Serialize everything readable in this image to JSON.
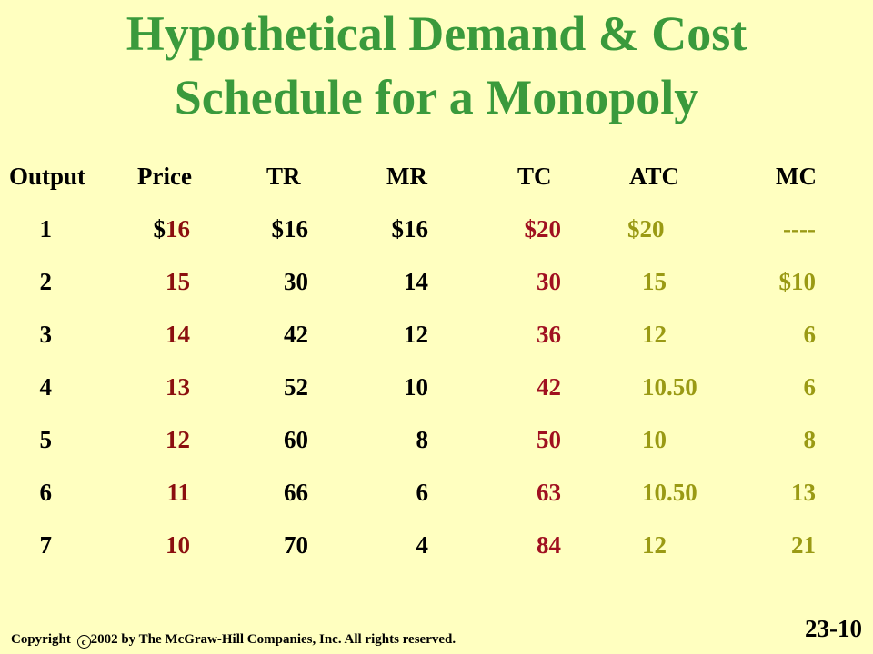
{
  "title": {
    "line1": "Hypothetical Demand & Cost",
    "line2": "Schedule for a Monopoly"
  },
  "table": {
    "headers": [
      "Output",
      "Price",
      "TR",
      "MR",
      "TC",
      "ATC",
      "MC"
    ],
    "rows": [
      {
        "output": "1",
        "price_sign": "$",
        "price": "16",
        "tr": "$16",
        "mr": "$16",
        "tc": "$20",
        "atc": "$20",
        "mc": "----"
      },
      {
        "output": "2",
        "price_sign": "",
        "price": "15",
        "tr": "30",
        "mr": "14",
        "tc": "30",
        "atc": "15",
        "mc": "$10"
      },
      {
        "output": "3",
        "price_sign": "",
        "price": "14",
        "tr": "42",
        "mr": "12",
        "tc": "36",
        "atc": "12",
        "mc": "6"
      },
      {
        "output": "4",
        "price_sign": "",
        "price": "13",
        "tr": "52",
        "mr": "10",
        "tc": "42",
        "atc": "10.50",
        "mc": "6"
      },
      {
        "output": "5",
        "price_sign": "",
        "price": "12",
        "tr": "60",
        "mr": "8",
        "tc": "50",
        "atc": "10",
        "mc": "8"
      },
      {
        "output": "6",
        "price_sign": "",
        "price": "11",
        "tr": "66",
        "mr": "6",
        "tc": "63",
        "atc": "10.50",
        "mc": "13"
      },
      {
        "output": "7",
        "price_sign": "",
        "price": "10",
        "tr": "70",
        "mr": "4",
        "tc": "84",
        "atc": "12",
        "mc": "21"
      }
    ]
  },
  "footer": {
    "copyright_prefix": "Copyright",
    "copyright_symbol": "c",
    "copyright_rest": "2002 by The McGraw-Hill Companies, Inc.  All rights reserved.",
    "slide_number": "23-10"
  },
  "colors": {
    "background": "#FFFFC0",
    "title": "#3A9A3C",
    "price": "#8B0F0F",
    "tc": "#A01020",
    "atc_mc": "#9A9A14",
    "text": "#000000"
  }
}
